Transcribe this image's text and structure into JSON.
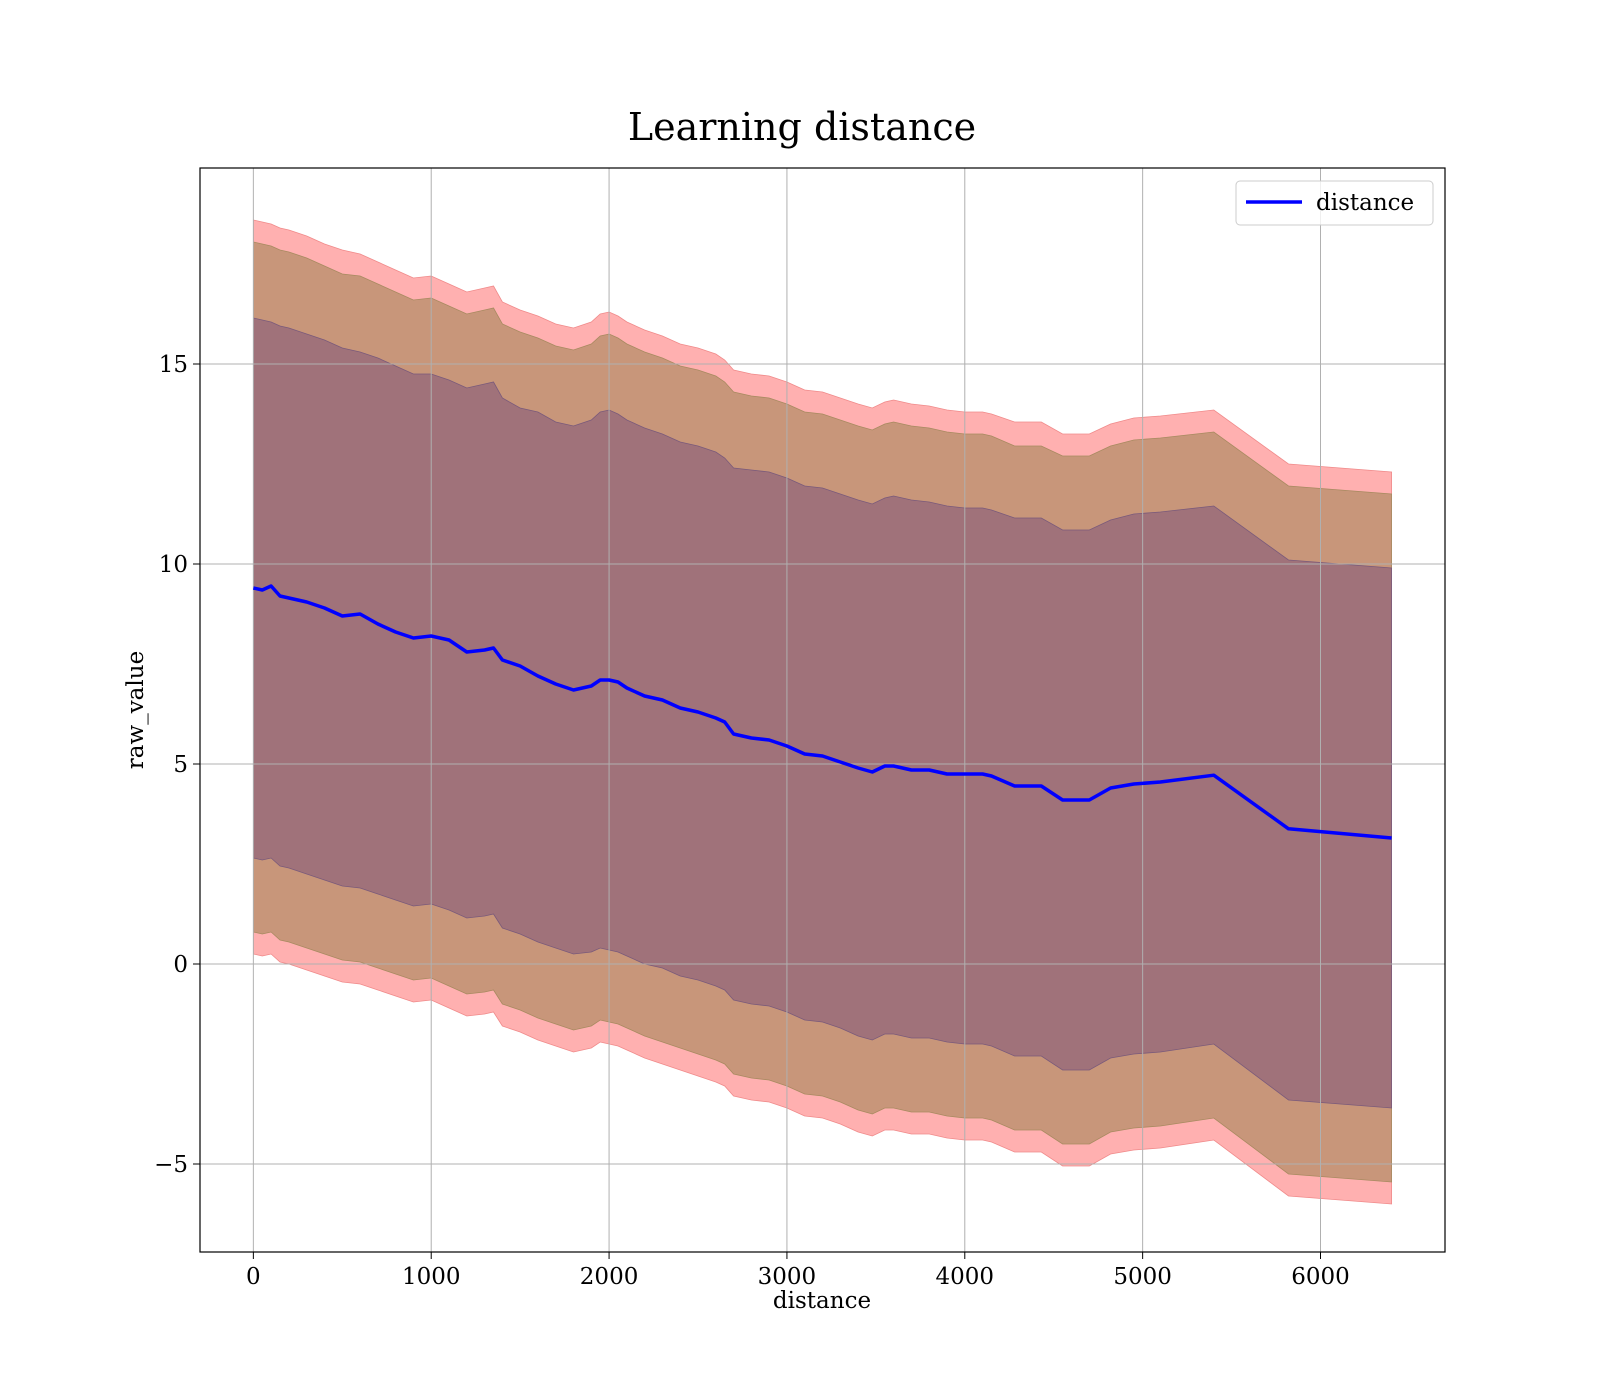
{
  "chart_data": {
    "type": "line",
    "title": "Learning distance",
    "xlabel": "distance",
    "ylabel": "raw_value",
    "xlim": [
      -300,
      6700
    ],
    "ylim": [
      -7.2,
      19.9
    ],
    "x_ticks": [
      0,
      1000,
      2000,
      3000,
      4000,
      5000,
      6000
    ],
    "x_tick_labels": [
      "0",
      "1000",
      "2000",
      "3000",
      "4000",
      "5000",
      "6000"
    ],
    "y_ticks": [
      -5,
      0,
      5,
      10,
      15
    ],
    "y_tick_labels": [
      "−5",
      "0",
      "5",
      "10",
      "15"
    ],
    "grid": true,
    "legend_position": "top-right",
    "legend": [
      {
        "label": "distance",
        "color": "#0000ff"
      }
    ],
    "colors": {
      "line": "#0000ff",
      "band_inner": "#a0727a",
      "band_middle": "#c8967a",
      "band_outer": "#ffb0b0",
      "grid": "#b0b0b0"
    },
    "series": [
      {
        "name": "distance",
        "x": [
          0,
          50,
          100,
          150,
          200,
          300,
          400,
          500,
          600,
          700,
          800,
          900,
          1000,
          1100,
          1200,
          1300,
          1350,
          1400,
          1500,
          1600,
          1700,
          1800,
          1900,
          1950,
          2000,
          2050,
          2100,
          2200,
          2300,
          2400,
          2500,
          2600,
          2650,
          2700,
          2800,
          2900,
          3000,
          3100,
          3200,
          3300,
          3400,
          3480,
          3550,
          3600,
          3700,
          3800,
          3900,
          4000,
          4100,
          4150,
          4280,
          4430,
          4550,
          4700,
          4820,
          4950,
          5100,
          5400,
          5820,
          6400
        ],
        "values": [
          9.4,
          9.35,
          9.45,
          9.2,
          9.15,
          9.05,
          8.9,
          8.7,
          8.75,
          8.5,
          8.3,
          8.15,
          8.2,
          8.1,
          7.8,
          7.85,
          7.9,
          7.6,
          7.45,
          7.2,
          7.0,
          6.85,
          6.95,
          7.1,
          7.1,
          7.05,
          6.9,
          6.7,
          6.6,
          6.4,
          6.3,
          6.15,
          6.05,
          5.75,
          5.65,
          5.6,
          5.45,
          5.25,
          5.2,
          5.05,
          4.9,
          4.8,
          4.95,
          4.95,
          4.85,
          4.85,
          4.75,
          4.75,
          4.75,
          4.7,
          4.45,
          4.45,
          4.1,
          4.1,
          4.4,
          4.5,
          4.55,
          4.72,
          3.38,
          3.15
        ],
        "band_inner": {
          "upper": [
            16.15,
            16.1,
            16.05,
            15.95,
            15.9,
            15.75,
            15.6,
            15.4,
            15.3,
            15.15,
            14.95,
            14.75,
            14.75,
            14.6,
            14.4,
            14.5,
            14.55,
            14.15,
            13.9,
            13.8,
            13.55,
            13.45,
            13.6,
            13.8,
            13.85,
            13.75,
            13.6,
            13.4,
            13.25,
            13.05,
            12.95,
            12.8,
            12.65,
            12.4,
            12.35,
            12.3,
            12.15,
            11.95,
            11.9,
            11.75,
            11.6,
            11.5,
            11.65,
            11.7,
            11.6,
            11.55,
            11.45,
            11.4,
            11.4,
            11.35,
            11.15,
            11.15,
            10.85,
            10.85,
            11.1,
            11.25,
            11.3,
            11.45,
            10.1,
            9.9
          ],
          "lower": [
            2.65,
            2.6,
            2.65,
            2.45,
            2.4,
            2.25,
            2.1,
            1.95,
            1.9,
            1.75,
            1.6,
            1.45,
            1.5,
            1.35,
            1.15,
            1.2,
            1.25,
            0.9,
            0.75,
            0.55,
            0.4,
            0.25,
            0.3,
            0.4,
            0.35,
            0.3,
            0.2,
            0.0,
            -0.1,
            -0.3,
            -0.4,
            -0.55,
            -0.65,
            -0.9,
            -1.0,
            -1.05,
            -1.2,
            -1.4,
            -1.45,
            -1.6,
            -1.8,
            -1.9,
            -1.75,
            -1.75,
            -1.85,
            -1.85,
            -1.95,
            -2.0,
            -2.0,
            -2.05,
            -2.3,
            -2.3,
            -2.65,
            -2.65,
            -2.35,
            -2.25,
            -2.2,
            -2.0,
            -3.4,
            -3.6
          ]
        },
        "band_middle": {
          "upper": [
            18.05,
            18.0,
            17.95,
            17.85,
            17.8,
            17.65,
            17.45,
            17.25,
            17.2,
            17.0,
            16.8,
            16.6,
            16.65,
            16.45,
            16.25,
            16.35,
            16.4,
            16.0,
            15.8,
            15.65,
            15.45,
            15.35,
            15.5,
            15.7,
            15.75,
            15.65,
            15.5,
            15.3,
            15.15,
            14.95,
            14.85,
            14.7,
            14.55,
            14.3,
            14.2,
            14.15,
            14.0,
            13.8,
            13.75,
            13.6,
            13.45,
            13.35,
            13.5,
            13.55,
            13.45,
            13.4,
            13.3,
            13.25,
            13.25,
            13.2,
            12.95,
            12.95,
            12.7,
            12.7,
            12.95,
            13.1,
            13.15,
            13.3,
            11.95,
            11.75
          ],
          "lower": [
            0.8,
            0.75,
            0.8,
            0.6,
            0.55,
            0.4,
            0.25,
            0.1,
            0.05,
            -0.1,
            -0.25,
            -0.4,
            -0.35,
            -0.55,
            -0.75,
            -0.7,
            -0.65,
            -1.0,
            -1.15,
            -1.35,
            -1.5,
            -1.65,
            -1.55,
            -1.4,
            -1.45,
            -1.5,
            -1.6,
            -1.8,
            -1.95,
            -2.1,
            -2.25,
            -2.4,
            -2.5,
            -2.75,
            -2.85,
            -2.9,
            -3.05,
            -3.25,
            -3.3,
            -3.45,
            -3.65,
            -3.75,
            -3.6,
            -3.6,
            -3.7,
            -3.7,
            -3.8,
            -3.85,
            -3.85,
            -3.9,
            -4.15,
            -4.15,
            -4.5,
            -4.5,
            -4.2,
            -4.1,
            -4.05,
            -3.85,
            -5.25,
            -5.45
          ]
        },
        "band_outer": {
          "upper": [
            18.6,
            18.55,
            18.5,
            18.4,
            18.35,
            18.2,
            18.0,
            17.85,
            17.75,
            17.55,
            17.35,
            17.15,
            17.2,
            17.0,
            16.8,
            16.9,
            16.95,
            16.55,
            16.35,
            16.2,
            16.0,
            15.9,
            16.05,
            16.25,
            16.3,
            16.2,
            16.05,
            15.85,
            15.7,
            15.5,
            15.4,
            15.25,
            15.1,
            14.85,
            14.75,
            14.7,
            14.55,
            14.35,
            14.3,
            14.15,
            14.0,
            13.9,
            14.05,
            14.1,
            14.0,
            13.95,
            13.85,
            13.8,
            13.8,
            13.75,
            13.55,
            13.55,
            13.25,
            13.25,
            13.5,
            13.65,
            13.7,
            13.85,
            12.5,
            12.3
          ],
          "lower": [
            0.25,
            0.2,
            0.25,
            0.05,
            0.0,
            -0.15,
            -0.3,
            -0.45,
            -0.5,
            -0.65,
            -0.8,
            -0.95,
            -0.9,
            -1.1,
            -1.3,
            -1.25,
            -1.2,
            -1.55,
            -1.7,
            -1.9,
            -2.05,
            -2.2,
            -2.1,
            -1.95,
            -2.0,
            -2.05,
            -2.15,
            -2.35,
            -2.5,
            -2.65,
            -2.8,
            -2.95,
            -3.05,
            -3.3,
            -3.4,
            -3.45,
            -3.6,
            -3.8,
            -3.85,
            -4.0,
            -4.2,
            -4.3,
            -4.15,
            -4.15,
            -4.25,
            -4.25,
            -4.35,
            -4.4,
            -4.4,
            -4.45,
            -4.7,
            -4.7,
            -5.05,
            -5.05,
            -4.75,
            -4.65,
            -4.6,
            -4.4,
            -5.8,
            -6.0
          ]
        }
      }
    ]
  }
}
